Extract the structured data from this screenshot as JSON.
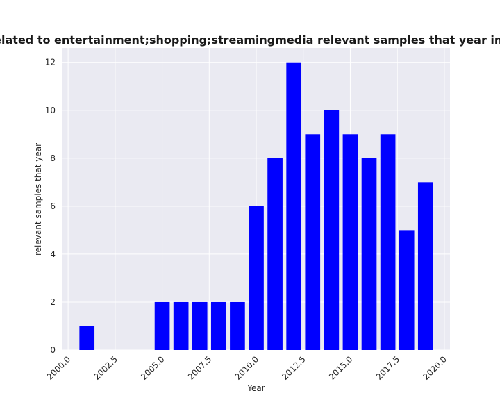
{
  "chart_data": {
    "type": "bar",
    "title": "Samples are related to entertainment;shopping;streamingmedia relevant samples that year in privacy policy",
    "xlabel": "Year",
    "ylabel": "relevant samples that year",
    "x": [
      2001,
      2005,
      2006,
      2007,
      2008,
      2009,
      2010,
      2011,
      2012,
      2013,
      2014,
      2015,
      2016,
      2017,
      2018,
      2019
    ],
    "values": [
      1,
      2,
      2,
      2,
      2,
      2,
      6,
      8,
      12,
      9,
      10,
      9,
      8,
      9,
      5,
      7
    ],
    "xlim": [
      1999.7,
      2020.3
    ],
    "ylim": [
      0,
      12.6
    ],
    "xticks": [
      "2000.0",
      "2002.5",
      "2005.0",
      "2007.5",
      "2010.0",
      "2012.5",
      "2015.0",
      "2017.5",
      "2020.0"
    ],
    "yticks": [
      "0",
      "2",
      "4",
      "6",
      "8",
      "10",
      "12"
    ],
    "bar_color": "#0000ff",
    "plot_background": "#eaeaf2",
    "grid_color": "#ffffff",
    "grid": true
  }
}
